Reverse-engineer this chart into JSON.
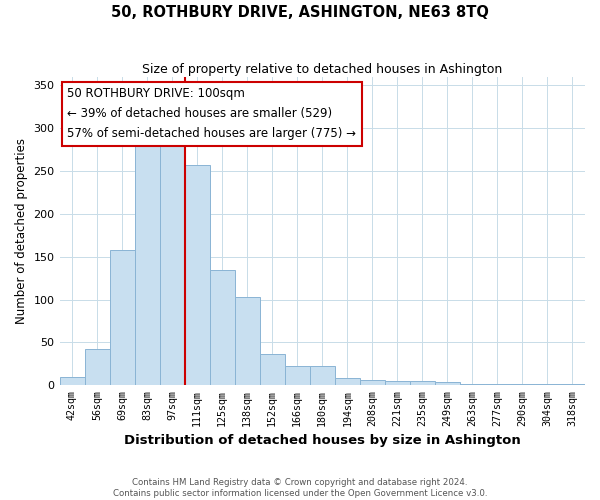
{
  "title": "50, ROTHBURY DRIVE, ASHINGTON, NE63 8TQ",
  "subtitle": "Size of property relative to detached houses in Ashington",
  "xlabel": "Distribution of detached houses by size in Ashington",
  "ylabel": "Number of detached properties",
  "bar_labels": [
    "42sqm",
    "56sqm",
    "69sqm",
    "83sqm",
    "97sqm",
    "111sqm",
    "125sqm",
    "138sqm",
    "152sqm",
    "166sqm",
    "180sqm",
    "194sqm",
    "208sqm",
    "221sqm",
    "235sqm",
    "249sqm",
    "263sqm",
    "277sqm",
    "290sqm",
    "304sqm",
    "318sqm"
  ],
  "bar_heights": [
    10,
    42,
    158,
    280,
    281,
    257,
    134,
    103,
    36,
    22,
    23,
    8,
    6,
    5,
    5,
    4,
    2,
    2,
    1,
    1,
    1
  ],
  "bar_color": "#c8dff0",
  "bar_edge_color": "#8ab4d4",
  "vline_x": 4.5,
  "vline_color": "#cc0000",
  "ylim": [
    0,
    360
  ],
  "yticks": [
    0,
    50,
    100,
    150,
    200,
    250,
    300,
    350
  ],
  "annotation_title": "50 ROTHBURY DRIVE: 100sqm",
  "annotation_line1": "← 39% of detached houses are smaller (529)",
  "annotation_line2": "57% of semi-detached houses are larger (775) →",
  "footer_line1": "Contains HM Land Registry data © Crown copyright and database right 2024.",
  "footer_line2": "Contains public sector information licensed under the Open Government Licence v3.0.",
  "background_color": "#ffffff",
  "grid_color": "#c8dce8"
}
